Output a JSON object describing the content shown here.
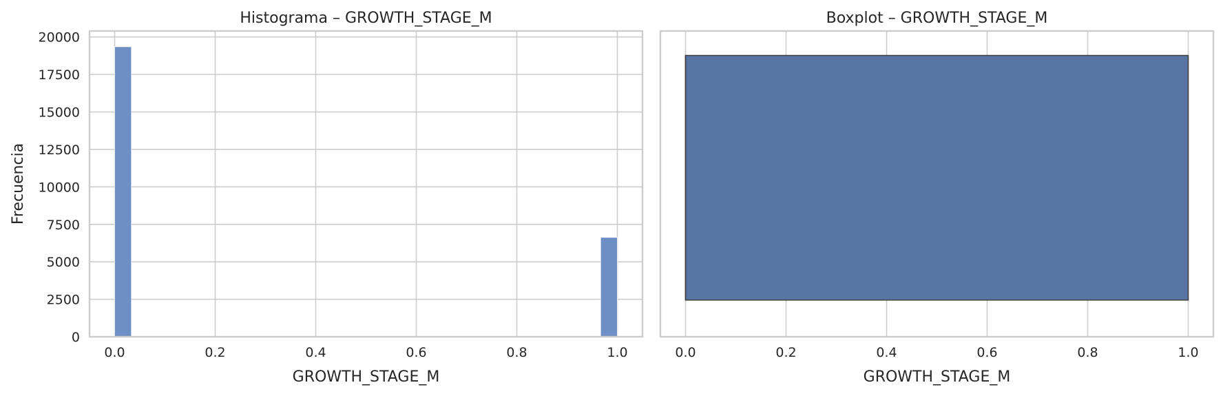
{
  "chart_data": [
    {
      "type": "bar",
      "subtype": "histogram",
      "title": "Histograma – GROWTH_STAGE_M",
      "xlabel": "GROWTH_STAGE_M",
      "ylabel": "Frecuencia",
      "xlim": [
        -0.05,
        1.05
      ],
      "ylim": [
        0,
        20400
      ],
      "xticks": [
        "0.0",
        "0.2",
        "0.4",
        "0.6",
        "0.8",
        "1.0"
      ],
      "yticks": [
        "0",
        "2500",
        "5000",
        "7500",
        "10000",
        "12500",
        "15000",
        "17500",
        "20000"
      ],
      "bins": [
        {
          "x0": 0.0,
          "x1": 0.0333,
          "count": 19350
        },
        {
          "x0": 0.9667,
          "x1": 1.0,
          "count": 6630
        }
      ],
      "grid": true,
      "color": "#6d8fc4"
    },
    {
      "type": "box",
      "title": "Boxplot – GROWTH_STAGE_M",
      "xlabel": "GROWTH_STAGE_M",
      "xlim": [
        -0.05,
        1.05
      ],
      "xticks": [
        "0.0",
        "0.2",
        "0.4",
        "0.6",
        "0.8",
        "1.0"
      ],
      "q1": 0.0,
      "median": 0.0,
      "q3": 1.0,
      "whisker_low": 0.0,
      "whisker_high": 1.0,
      "grid": true,
      "color": "#5975a4"
    }
  ]
}
